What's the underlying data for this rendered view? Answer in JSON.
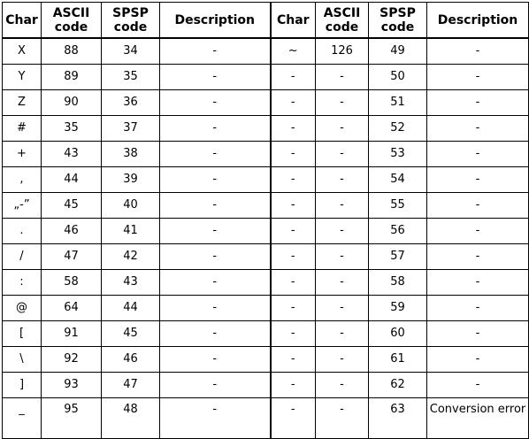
{
  "headers": [
    "Char",
    "ASCII code",
    "SPSP code",
    "Description",
    "Char",
    "ASCII code",
    "SPSP code",
    "Description"
  ],
  "rows": [
    [
      "X",
      "88",
      "34",
      "-",
      "~",
      "126",
      "49",
      "-"
    ],
    [
      "Y",
      "89",
      "35",
      "-",
      "-",
      "-",
      "50",
      "-"
    ],
    [
      "Z",
      "90",
      "36",
      "-",
      "-",
      "-",
      "51",
      "-"
    ],
    [
      "#",
      "35",
      "37",
      "-",
      "-",
      "-",
      "52",
      "-"
    ],
    [
      "+",
      "43",
      "38",
      "-",
      "-",
      "-",
      "53",
      "-"
    ],
    [
      ",",
      "44",
      "39",
      "-",
      "-",
      "-",
      "54",
      "-"
    ],
    [
      "„-”",
      "45",
      "40",
      "-",
      "-",
      "-",
      "55",
      "-"
    ],
    [
      ".",
      "46",
      "41",
      "-",
      "-",
      "-",
      "56",
      "-"
    ],
    [
      "/",
      "47",
      "42",
      "-",
      "-",
      "-",
      "57",
      "-"
    ],
    [
      ":",
      "58",
      "43",
      "-",
      "-",
      "-",
      "58",
      "-"
    ],
    [
      "@",
      "64",
      "44",
      "-",
      "-",
      "-",
      "59",
      "-"
    ],
    [
      "[",
      "91",
      "45",
      "-",
      "-",
      "-",
      "60",
      "-"
    ],
    [
      "\\",
      "92",
      "46",
      "-",
      "-",
      "-",
      "61",
      "-"
    ],
    [
      "]",
      "93",
      "47",
      "-",
      "-",
      "-",
      "62",
      "-"
    ],
    [
      "_",
      "95",
      "48",
      "-",
      "-",
      "-",
      "63",
      "Conversion error"
    ]
  ]
}
